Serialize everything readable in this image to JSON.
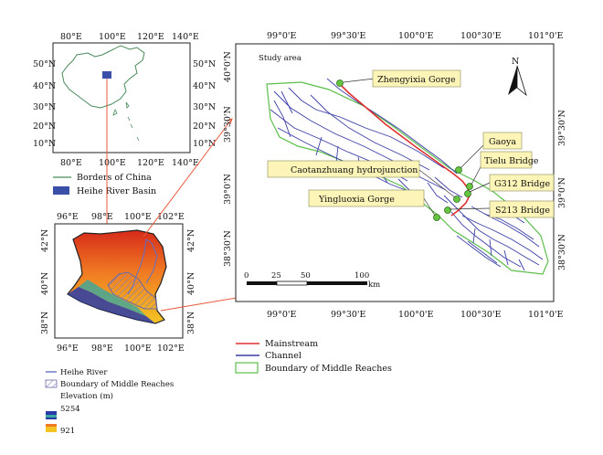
{
  "inset_china": {
    "top_ticks": [
      "80°E",
      "100°E",
      "120°E",
      "140°E"
    ],
    "bottom_ticks": [
      "80°E",
      "100°E",
      "120°E",
      "140°E"
    ],
    "left_ticks": [
      "50°N",
      "40°N",
      "30°N",
      "20°N",
      "10°N"
    ],
    "right_ticks": [
      "50°N",
      "40°N",
      "30°N",
      "20°N",
      "10°N"
    ],
    "legend": {
      "borders": "Borders of China",
      "basin": "Heihe River Basin"
    },
    "colors": {
      "border": "#4a8a5a",
      "basin": "#3a4fa8"
    }
  },
  "inset_basin": {
    "top_ticks": [
      "96°E",
      "98°E",
      "100°E",
      "102°E"
    ],
    "bottom_ticks": [
      "96°E",
      "98°E",
      "100°E",
      "102°E"
    ],
    "left_ticks": [
      "42°N",
      "40°N",
      "38°N"
    ],
    "right_ticks": [
      "42°N",
      "40°N",
      "38°N"
    ],
    "legend": {
      "river": "Heihe River",
      "boundary": "Boundary of Middle Reaches",
      "elevation_title": "Elevation (m)",
      "elev_high": "5254",
      "elev_low": "921"
    }
  },
  "main_map": {
    "top_ticks": [
      "99°0'E",
      "99°30'E",
      "100°0'E",
      "100°30'E",
      "101°0'E"
    ],
    "bottom_ticks": [
      "99°0'E",
      "99°30'E",
      "100°0'E",
      "100°30'E",
      "101°0'E"
    ],
    "left_ticks": [
      "40°0'N",
      "39°30'N",
      "39°0'N",
      "38°30'N"
    ],
    "right_ticks": [
      "39°30'N",
      "39°0'N",
      "38°30'N"
    ],
    "study_area": "Study area",
    "north": "N",
    "scale": {
      "zero": "0",
      "t25": "25",
      "t50": "50",
      "t100": "100",
      "unit": "km"
    },
    "labels": {
      "zhengyixia": "Zhengyixia Gorge",
      "gaoya": "Gaoya",
      "tielu": "Tielu Bridge",
      "caotanzhuang": "Caotanzhuang hydrojunction",
      "g312": "G312 Bridge",
      "yingluoxia": "Yingluoxia Gorge",
      "s213": "S213 Bridge"
    },
    "legend": {
      "mainstream": "Mainstream",
      "channel": "Channel",
      "boundary": "Boundary of Middle Reaches"
    },
    "colors": {
      "mainstream": "#e03030",
      "channel": "#3b3fa6",
      "boundary": "#5bbf4a",
      "label_bg": "#fdf5b8",
      "connector": "#e8593a"
    }
  }
}
